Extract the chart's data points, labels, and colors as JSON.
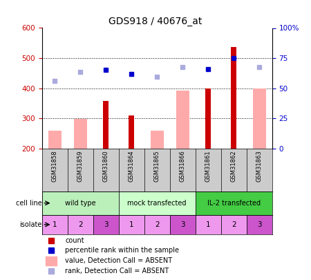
{
  "title": "GDS918 / 40676_at",
  "samples": [
    "GSM31858",
    "GSM31859",
    "GSM31860",
    "GSM31864",
    "GSM31865",
    "GSM31866",
    "GSM31861",
    "GSM31862",
    "GSM31863"
  ],
  "count": [
    null,
    null,
    357,
    310,
    null,
    null,
    400,
    537,
    null
  ],
  "value_absent": [
    258,
    298,
    null,
    null,
    258,
    392,
    null,
    null,
    400
  ],
  "percentile_rank": [
    null,
    null,
    462,
    447,
    null,
    null,
    463,
    500,
    null
  ],
  "rank_absent": [
    423,
    453,
    null,
    null,
    437,
    470,
    null,
    null,
    470
  ],
  "ylim_left": [
    200,
    600
  ],
  "ylim_right": [
    0,
    100
  ],
  "yticks_left": [
    200,
    300,
    400,
    500,
    600
  ],
  "yticks_right": [
    0,
    25,
    50,
    75,
    100
  ],
  "ytick_labels_right": [
    "0",
    "25",
    "50",
    "75",
    "100%"
  ],
  "cell_line_data": [
    {
      "label": "wild type",
      "start": 0,
      "end": 3,
      "color": "#bbf0bb"
    },
    {
      "label": "mock transfected",
      "start": 3,
      "end": 6,
      "color": "#ccffcc"
    },
    {
      "label": "IL-2 transfected",
      "start": 6,
      "end": 9,
      "color": "#44cc44"
    }
  ],
  "isolate": [
    "1",
    "2",
    "3",
    "1",
    "2",
    "3",
    "1",
    "2",
    "3"
  ],
  "isolate_colors": [
    "#ee99ee",
    "#ee99ee",
    "#cc55cc",
    "#ee99ee",
    "#ee99ee",
    "#cc55cc",
    "#ee99ee",
    "#ee99ee",
    "#cc55cc"
  ],
  "count_color": "#cc0000",
  "value_absent_color": "#ffaaaa",
  "percentile_color": "#0000cc",
  "rank_absent_color": "#aaaadd",
  "axis_color_left": "#cc0000",
  "axis_color_right": "#0000cc",
  "sample_label_bg": "#cccccc",
  "xlim": [
    -0.5,
    8.5
  ]
}
